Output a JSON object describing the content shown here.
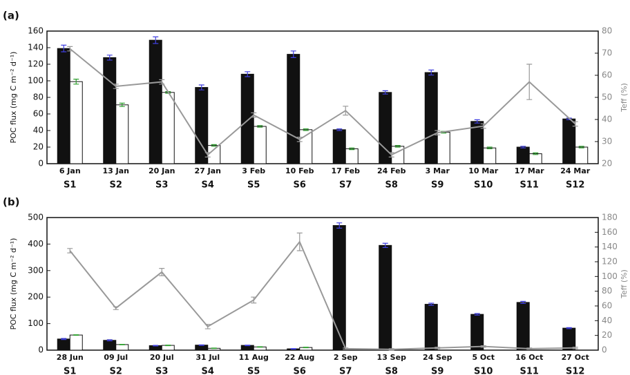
{
  "chart_data": [
    {
      "type": "bar",
      "panel_label": "(a)",
      "categories": [
        "6 Jan",
        "13 Jan",
        "20 Jan",
        "27 Jan",
        "3 Feb",
        "10 Feb",
        "17 Feb",
        "24 Feb",
        "3 Mar",
        "10 Mar",
        "17 Mar",
        "24 Mar"
      ],
      "stations": [
        "S1",
        "S2",
        "S3",
        "S4",
        "S5",
        "S6",
        "S7",
        "S8",
        "S9",
        "S10",
        "S11",
        "S12"
      ],
      "ylabel": "POC flux (mg C m⁻² d⁻¹)",
      "y2label": "Teff (%)",
      "ylim": [
        0,
        160
      ],
      "yticks": [
        0,
        20,
        40,
        60,
        80,
        100,
        120,
        140,
        160
      ],
      "y2lim": [
        20,
        80
      ],
      "y2ticks": [
        20,
        30,
        40,
        50,
        60,
        70,
        80
      ],
      "series": [
        {
          "kind": "bar",
          "color": "#111111",
          "error_color": "#4040e0",
          "values": [
            139,
            128,
            149,
            92,
            108,
            132,
            41,
            86,
            110,
            51,
            20,
            54
          ],
          "errors": [
            4,
            3,
            4,
            3,
            3,
            4,
            1,
            2,
            3,
            2,
            1,
            1
          ]
        },
        {
          "kind": "bar",
          "color": "#ffffff",
          "error_color": "#30a030",
          "values": [
            99,
            71,
            86,
            22,
            45,
            41,
            18,
            21,
            38,
            19,
            12,
            20
          ],
          "errors": [
            3,
            2,
            1,
            1,
            1,
            1,
            1,
            1,
            1,
            1,
            1,
            1
          ]
        },
        {
          "kind": "line",
          "axis": "y2",
          "color": "#999999",
          "values": [
            72,
            55,
            57,
            24,
            42,
            31,
            44,
            24,
            34,
            37,
            57,
            38
          ],
          "errors": [
            1,
            1,
            1,
            1,
            1,
            1,
            2,
            1,
            1,
            1,
            8,
            1
          ]
        }
      ]
    },
    {
      "type": "bar",
      "panel_label": "(b)",
      "categories": [
        "28 Jun",
        "09 Jul",
        "20 Jul",
        "31 Jul",
        "11 Aug",
        "22 Aug",
        "2 Sep",
        "13 Sep",
        "24 Sep",
        "5 Oct",
        "16 Oct",
        "27 Oct"
      ],
      "stations": [
        "S1",
        "S2",
        "S3",
        "S4",
        "S5",
        "S6",
        "S7",
        "S8",
        "S9",
        "S10",
        "S11",
        "S12"
      ],
      "ylabel": "POC flux (mg C m⁻² d⁻¹)",
      "y2label": "Teff (%)",
      "ylim": [
        0,
        500
      ],
      "yticks": [
        0,
        100,
        200,
        300,
        400,
        500
      ],
      "y2lim": [
        0,
        180
      ],
      "y2ticks": [
        0,
        20,
        40,
        60,
        80,
        100,
        120,
        140,
        160,
        180
      ],
      "series": [
        {
          "kind": "bar",
          "color": "#111111",
          "error_color": "#4040e0",
          "values": [
            42,
            37,
            17,
            19,
            18,
            5,
            470,
            395,
            173,
            135,
            180,
            83
          ],
          "errors": [
            2,
            2,
            1,
            1,
            1,
            1,
            10,
            8,
            4,
            3,
            4,
            2
          ]
        },
        {
          "kind": "bar",
          "color": "#ffffff",
          "error_color": "#30a030",
          "values": [
            57,
            21,
            18,
            7,
            12,
            10,
            null,
            null,
            null,
            null,
            null,
            null
          ],
          "errors": [
            1,
            1,
            1,
            1,
            1,
            1,
            null,
            null,
            null,
            null,
            null,
            null
          ]
        },
        {
          "kind": "line",
          "axis": "y2",
          "color": "#999999",
          "values": [
            135,
            57,
            106,
            32,
            68,
            147,
            2,
            1,
            3,
            5,
            2,
            3
          ],
          "errors": [
            3,
            2,
            5,
            3,
            4,
            12,
            1,
            1,
            1,
            1,
            1,
            1
          ]
        }
      ]
    }
  ]
}
